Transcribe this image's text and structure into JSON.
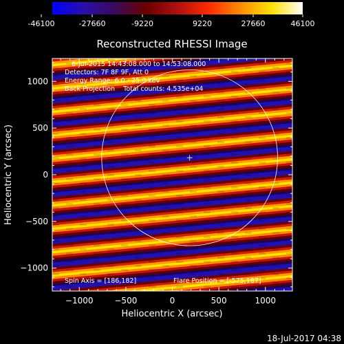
{
  "colorbar": {
    "ticks": [
      "-46100",
      "-27660",
      "-9220",
      "9220",
      "27660",
      "46100"
    ],
    "colors": [
      "#0000ff",
      "#2a0fa8",
      "#3a0a5a",
      "#6a0000",
      "#b01010",
      "#ff2a00",
      "#ff8c00",
      "#ffe000",
      "#ffffff"
    ]
  },
  "header_lines": {
    "line1": "6-Jul-2015 14:43:08.000 to 14:53:08.000",
    "line2": "Detectors: 7F 8F 9F, Att 0",
    "line3": "Energy Range: 6.0 - 25.0 keV",
    "line4": "Back Projection    Total counts: 4.535e+04"
  },
  "footer_lines": {
    "spin_axis": "Spin Axis = [186,182]",
    "flare_position": "Flare Position = [-575,187]"
  },
  "timestamp": "18-Jul-2017 04:38",
  "chart_data": {
    "type": "heatmap",
    "title": "Reconstructed RHESSI Image",
    "xlabel": "Heliocentric X (arcsec)",
    "ylabel": "Heliocentric Y (arcsec)",
    "xlim": [
      -1290,
      1290
    ],
    "ylim": [
      -1245,
      1245
    ],
    "xticks": [
      -1000,
      -500,
      0,
      500,
      1000
    ],
    "yticks": [
      -1000,
      -500,
      0,
      500,
      1000
    ],
    "xtick_labels": [
      "−1000",
      "−500",
      "0",
      "500",
      "1000"
    ],
    "ytick_labels": [
      "−1000",
      "−500",
      "0",
      "500",
      "1000"
    ],
    "value_range": [
      -46100,
      46100
    ],
    "solar_limb_center": [
      186,
      182
    ],
    "solar_limb_radius": 945,
    "spin_axis_marker": [
      186,
      182
    ],
    "pattern": "diagonal stripes (back-projection fringes)"
  }
}
